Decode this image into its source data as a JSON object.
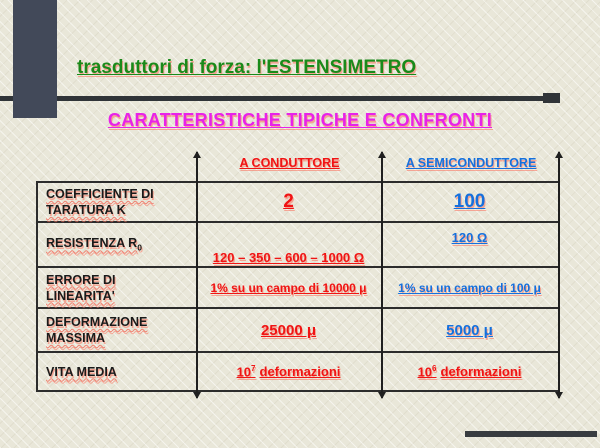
{
  "colors": {
    "background": "#e9e7d9",
    "accent_bar": "#424959",
    "rule_line": "#303438",
    "title_green": "#1a8a1a",
    "subtitle_magenta": "#e822e8",
    "conduttore_red": "#f01414",
    "semiconduttore_blue": "#1570dd",
    "table_border": "#2c2c2c"
  },
  "header": {
    "title": "trasduttori di forza: l'ESTENSIMETRO",
    "subtitle": "CARATTERISTICHE TIPICHE E CONFRONTI"
  },
  "table": {
    "column_headers": {
      "conduttore": "A CONDUTTORE",
      "semiconduttore": "A SEMICONDUTTORE"
    },
    "rows": [
      {
        "label": "COEFFICIENTE DI TARATURA K",
        "conduttore": "2",
        "semiconduttore": "100"
      },
      {
        "label_base": "RESISTENZA R",
        "label_sub": "0",
        "conduttore": "120 – 350 – 600 – 1000 Ω",
        "semiconduttore": "120 Ω"
      },
      {
        "label": "ERRORE DI LINEARITA'",
        "conduttore": "1% su un campo di 10000 μ",
        "semiconduttore": "1% su un campo di 100 μ"
      },
      {
        "label": "DEFORMAZIONE MASSIMA",
        "conduttore": "25000 μ",
        "semiconduttore": "5000 μ"
      },
      {
        "label": "VITA MEDIA",
        "conduttore_base": "10",
        "conduttore_sup": "7",
        "conduttore_unit": "deformazioni",
        "semiconduttore_base": "10",
        "semiconduttore_sup": "6",
        "semiconduttore_unit": "deformazioni"
      }
    ]
  }
}
